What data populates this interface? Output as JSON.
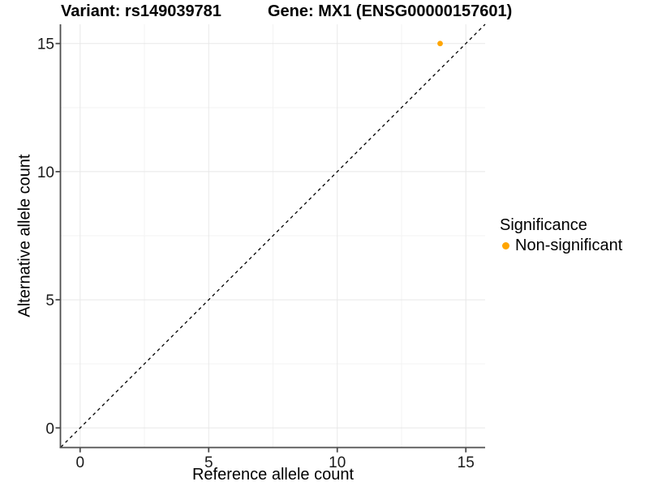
{
  "header": {
    "variant_title": "Variant: rs149039781",
    "gene_title": "Gene: MX1 (ENSG00000157601)"
  },
  "chart_data": {
    "type": "scatter",
    "xlabel": "Reference allele count",
    "ylabel": "Alternative allele count",
    "xlim": [
      -0.75,
      15.75
    ],
    "ylim": [
      -0.75,
      15.75
    ],
    "xticks": [
      0,
      5,
      10,
      15
    ],
    "yticks": [
      0,
      5,
      10,
      15
    ],
    "minor_xticks": [
      2.5,
      7.5,
      12.5
    ],
    "minor_yticks": [
      2.5,
      7.5,
      12.5
    ],
    "grid": "major+minor",
    "identity_line": {
      "equation": "y = x",
      "style": "dashed",
      "color": "#000000"
    },
    "series": [
      {
        "name": "Non-significant",
        "color": "#FFA500",
        "points": [
          {
            "x": 14,
            "y": 15
          }
        ]
      }
    ],
    "legend": {
      "title": "Significance",
      "position": "right",
      "items": [
        {
          "label": "Non-significant",
          "color": "#FFA500"
        }
      ]
    }
  },
  "colors": {
    "background": "#FFFFFF",
    "grid_major": "#E8E8E8",
    "grid_minor": "#F3F3F3",
    "axis_line": "#4D4D4D",
    "tick_text": "#1A1A1A",
    "point": "#FFA500",
    "identity_line": "#000000"
  }
}
